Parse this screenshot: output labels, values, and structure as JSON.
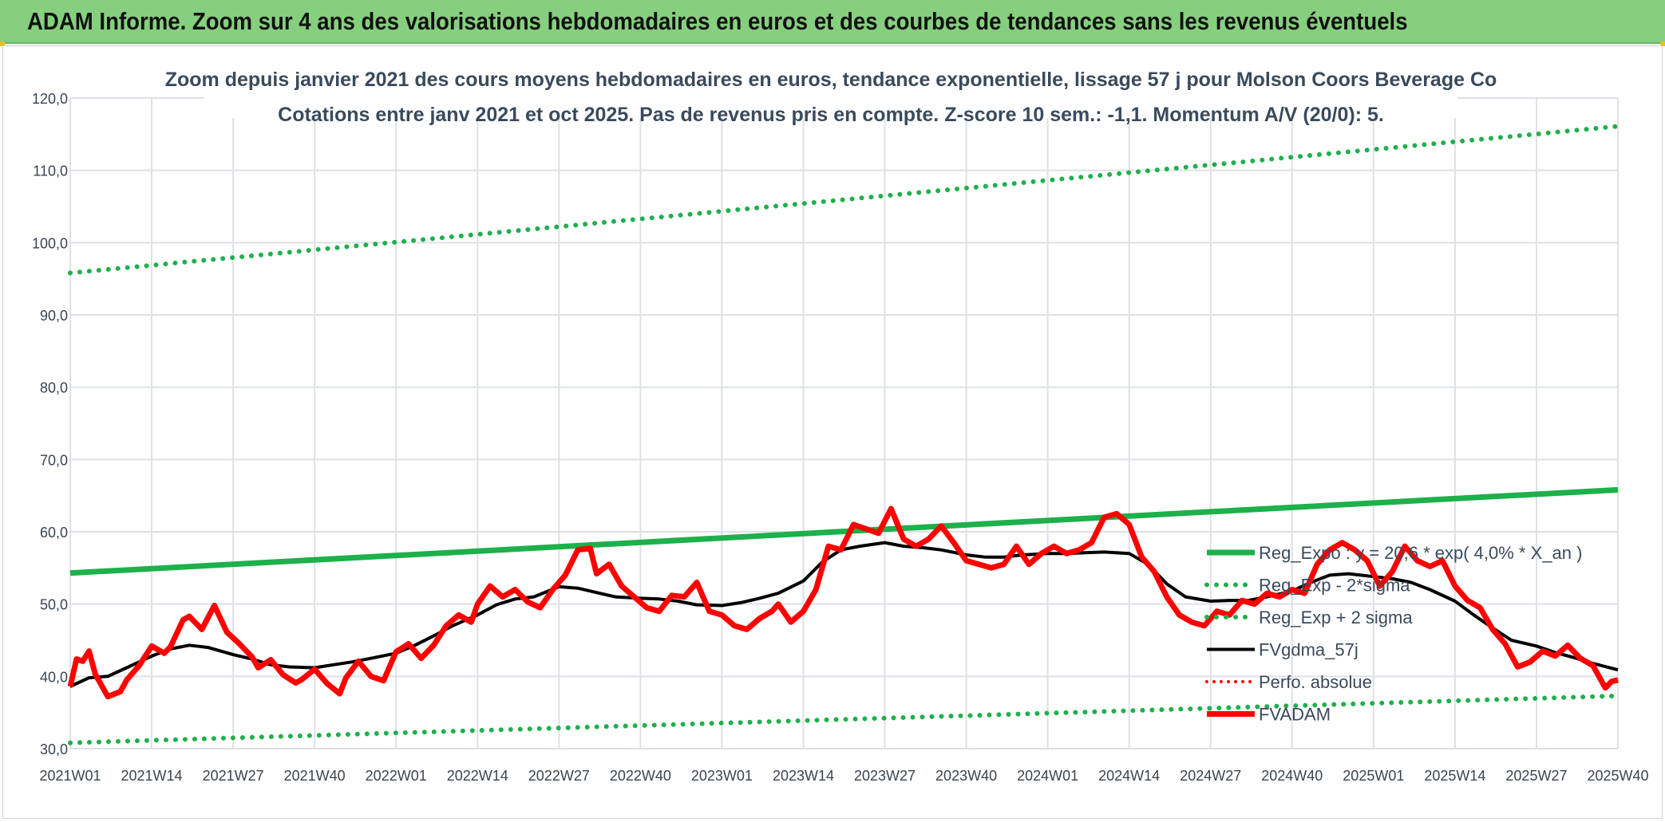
{
  "banner": {
    "title": "ADAM Informe. Zoom sur 4 ans des valorisations hebdomadaires en euros et des courbes de tendances sans les revenus éventuels"
  },
  "colors": {
    "banner_bg": "#86cf7e",
    "trend_green": "#1db04b",
    "price_red": "#ff0000",
    "smooth_black": "#000000",
    "grid": "#dde1e6"
  },
  "chart_data": {
    "type": "line",
    "title": "Zoom depuis janvier 2021 des cours moyens hebdomadaires en euros, tendance exponentielle, lissage 57 j pour Molson Coors Beverage Co",
    "subtitle": "Cotations entre janv 2021 et oct 2025. Pas de revenus pris en compte. Z-score 10 sem.: -1,1. Momentum A/V (20/0): 5.",
    "xlabel": "",
    "ylabel": "",
    "ylim": [
      30,
      120
    ],
    "y_ticks": [
      "30,0",
      "40,0",
      "50,0",
      "60,0",
      "70,0",
      "80,0",
      "90,0",
      "100,0",
      "110,0",
      "120,0"
    ],
    "x_ticks": [
      "2021W01",
      "2021W14",
      "2021W27",
      "2021W40",
      "2022W01",
      "2022W14",
      "2022W27",
      "2022W40",
      "2023W01",
      "2023W14",
      "2023W27",
      "2023W40",
      "2024W01",
      "2024W14",
      "2024W27",
      "2024W40",
      "2025W01",
      "2025W14",
      "2025W27",
      "2025W40"
    ],
    "x_tick_week_index": [
      0,
      13,
      26,
      39,
      52,
      65,
      78,
      91,
      104,
      117,
      130,
      143,
      156,
      169,
      182,
      195,
      208,
      221,
      234,
      247
    ],
    "grid": true,
    "legend_position": "right",
    "series": [
      {
        "name": "Reg_Expo : y = 20,6 * exp( 4,0% *  X_an )",
        "style": "solid-green",
        "x": [
          0,
          247
        ],
        "y": [
          54.3,
          65.8
        ]
      },
      {
        "name": "Reg_Exp - 2*sigma",
        "style": "dotted-green",
        "x": [
          0,
          247
        ],
        "y": [
          30.8,
          37.3
        ]
      },
      {
        "name": "Reg_Exp + 2 sigma",
        "style": "dotted-green",
        "x": [
          0,
          247
        ],
        "y": [
          95.8,
          116.1
        ]
      },
      {
        "name": "FVgdma_57j",
        "style": "solid-black",
        "x": [
          0,
          3,
          6,
          9,
          13,
          16,
          19,
          22,
          26,
          29,
          32,
          35,
          39,
          42,
          45,
          48,
          52,
          55,
          58,
          61,
          65,
          68,
          71,
          74,
          78,
          81,
          84,
          87,
          91,
          94,
          97,
          100,
          104,
          107,
          110,
          113,
          117,
          120,
          123,
          126,
          130,
          133,
          136,
          139,
          143,
          146,
          149,
          152,
          156,
          159,
          162,
          165,
          169,
          172,
          175,
          178,
          182,
          185,
          188,
          191,
          195,
          198,
          201,
          204,
          208,
          211,
          214,
          217,
          221,
          224,
          227,
          230,
          234,
          237,
          240,
          243,
          247
        ],
        "y": [
          38.6,
          39.8,
          40.0,
          41.2,
          42.8,
          43.8,
          44.3,
          44.0,
          43.0,
          42.4,
          41.6,
          41.3,
          41.2,
          41.6,
          42.0,
          42.5,
          43.2,
          44.3,
          45.6,
          47.0,
          48.5,
          49.9,
          50.7,
          51.0,
          52.4,
          52.2,
          51.6,
          51.0,
          50.8,
          50.7,
          50.4,
          49.9,
          49.8,
          50.2,
          50.8,
          51.5,
          53.2,
          55.8,
          57.5,
          58.0,
          58.5,
          58.0,
          57.8,
          57.5,
          56.8,
          56.5,
          56.5,
          56.8,
          57.0,
          57.0,
          57.1,
          57.2,
          57.0,
          55.5,
          52.8,
          51.0,
          50.4,
          50.5,
          50.5,
          51.0,
          51.8,
          53.0,
          54.0,
          54.2,
          53.8,
          53.5,
          53.0,
          52.0,
          50.4,
          48.5,
          46.7,
          45.0,
          44.2,
          43.3,
          42.6,
          41.8,
          40.9
        ]
      },
      {
        "name": "Perfo. absolue",
        "style": "dotted-red",
        "x": [],
        "y": []
      },
      {
        "name": "FVADAM",
        "style": "thick-red",
        "x": [
          0,
          1,
          2,
          3,
          4,
          6,
          8,
          9,
          11,
          13,
          15,
          16,
          18,
          19,
          21,
          23,
          25,
          27,
          29,
          30,
          32,
          34,
          36,
          37,
          39,
          41,
          43,
          44,
          46,
          48,
          50,
          52,
          54,
          56,
          58,
          60,
          62,
          64,
          65,
          67,
          69,
          71,
          73,
          75,
          77,
          79,
          81,
          83,
          84,
          86,
          88,
          90,
          92,
          94,
          96,
          98,
          100,
          102,
          104,
          106,
          108,
          110,
          112,
          113,
          115,
          117,
          119,
          121,
          123,
          125,
          127,
          129,
          131,
          133,
          135,
          137,
          139,
          141,
          143,
          145,
          147,
          149,
          151,
          153,
          155,
          157,
          159,
          161,
          163,
          165,
          167,
          169,
          171,
          173,
          175,
          177,
          179,
          181,
          183,
          185,
          187,
          189,
          191,
          193,
          195,
          197,
          199,
          201,
          203,
          205,
          207,
          209,
          211,
          213,
          215,
          217,
          219,
          221,
          223,
          225,
          227,
          229,
          231,
          233,
          235,
          237,
          239,
          241,
          243,
          245,
          246,
          247
        ],
        "y": [
          38.6,
          42.4,
          42.1,
          43.5,
          40.3,
          37.2,
          37.9,
          39.5,
          41.5,
          44.2,
          43.2,
          44.1,
          47.8,
          48.3,
          46.5,
          49.8,
          46.1,
          44.5,
          42.7,
          41.2,
          42.3,
          40.2,
          39.1,
          39.6,
          41.0,
          39.0,
          37.6,
          39.8,
          42.1,
          40.0,
          39.4,
          43.4,
          44.5,
          42.5,
          44.3,
          47.0,
          48.5,
          47.5,
          50.0,
          52.5,
          51.0,
          52.0,
          50.3,
          49.5,
          52.0,
          54.0,
          57.5,
          57.7,
          54.2,
          55.5,
          52.5,
          51.0,
          49.5,
          49.0,
          51.2,
          51.0,
          53.0,
          49.0,
          48.5,
          47.0,
          46.5,
          48.0,
          49.0,
          50.0,
          47.5,
          49.0,
          52.0,
          58.0,
          57.5,
          61.0,
          60.4,
          59.8,
          63.2,
          59.0,
          58.0,
          59.0,
          60.8,
          58.5,
          56.0,
          55.5,
          55.0,
          55.5,
          58.0,
          55.5,
          57.0,
          58.0,
          57.0,
          57.5,
          58.5,
          62.0,
          62.5,
          61.0,
          56.5,
          54.5,
          51.0,
          48.5,
          47.5,
          47.0,
          49.0,
          48.5,
          50.5,
          50.0,
          51.5,
          51.0,
          52.0,
          51.5,
          55.5,
          57.5,
          58.5,
          57.5,
          56.0,
          52.5,
          54.5,
          58.0,
          56.0,
          55.2,
          56.0,
          52.5,
          50.5,
          49.5,
          46.5,
          44.5,
          41.3,
          42.0,
          43.5,
          42.8,
          44.3,
          42.5,
          41.5,
          38.4,
          39.3,
          39.5
        ]
      }
    ]
  }
}
